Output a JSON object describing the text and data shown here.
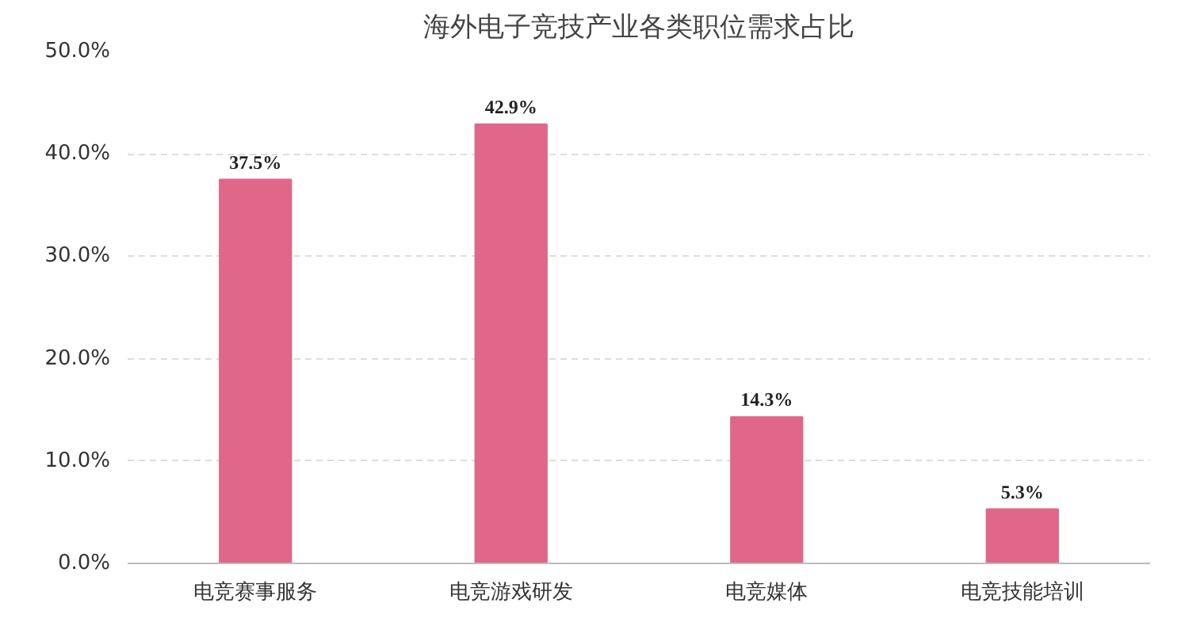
{
  "chart_data": {
    "type": "bar",
    "title": "海外电子竞技产业各类职位需求占比",
    "categories": [
      "电竞赛事服务",
      "电竞游戏研发",
      "电竞媒体",
      "电竞技能培训"
    ],
    "values": [
      37.5,
      42.9,
      14.3,
      5.3
    ],
    "color": "#e0678a",
    "value_labels": [
      "37.5%",
      "42.9%",
      "14.3%",
      "5.3%"
    ],
    "ylim": [
      0,
      50
    ],
    "yticks": [
      {
        "value": 0,
        "label": "0.0%"
      },
      {
        "value": 10,
        "label": "10.0%"
      },
      {
        "value": 20,
        "label": "20.0%"
      },
      {
        "value": 30,
        "label": "30.0%"
      },
      {
        "value": 40,
        "label": "40.0%"
      },
      {
        "value": 50,
        "label": "50.0%"
      }
    ],
    "grid": "y"
  }
}
